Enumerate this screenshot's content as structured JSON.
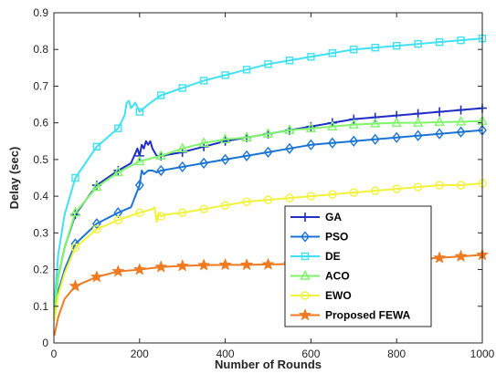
{
  "chart_data": {
    "type": "line",
    "title": "",
    "xlabel": "Number of Rounds",
    "ylabel": "Delay (sec)",
    "xlim": [
      0,
      1000
    ],
    "ylim": [
      0,
      0.9
    ],
    "xticks": [
      0,
      200,
      400,
      600,
      800,
      1000
    ],
    "yticks": [
      0,
      0.1,
      0.2,
      0.3,
      0.4,
      0.5,
      0.6,
      0.7,
      0.8,
      0.9
    ],
    "xtick_labels": [
      "0",
      "200",
      "400",
      "600",
      "800",
      "1000"
    ],
    "ytick_labels": [
      "0",
      "0.1",
      "0.2",
      "0.3",
      "0.4",
      "0.5",
      "0.6",
      "0.7",
      "0.8",
      "0.9"
    ],
    "grid": false,
    "legend_position": "lower-right",
    "series": [
      {
        "name": "GA",
        "color": "#1f2ec6",
        "marker": "plus",
        "x": [
          1,
          10,
          25,
          50,
          100,
          150,
          180,
          195,
          200,
          205,
          210,
          215,
          220,
          225,
          230,
          240,
          250,
          300,
          350,
          400,
          450,
          500,
          550,
          600,
          650,
          700,
          750,
          800,
          850,
          900,
          950,
          1000
        ],
        "y": [
          0.08,
          0.18,
          0.26,
          0.35,
          0.43,
          0.47,
          0.49,
          0.53,
          0.51,
          0.54,
          0.53,
          0.55,
          0.54,
          0.55,
          0.53,
          0.51,
          0.51,
          0.52,
          0.535,
          0.55,
          0.56,
          0.57,
          0.58,
          0.59,
          0.6,
          0.61,
          0.615,
          0.62,
          0.625,
          0.63,
          0.635,
          0.64
        ],
        "marker_x": [
          50,
          100,
          150,
          200,
          250,
          300,
          350,
          400,
          450,
          500,
          550,
          600,
          650,
          700,
          750,
          800,
          850,
          900,
          950,
          1000
        ]
      },
      {
        "name": "PSO",
        "color": "#1a74d6",
        "marker": "diamond",
        "x": [
          1,
          10,
          25,
          50,
          100,
          150,
          180,
          190,
          200,
          205,
          210,
          220,
          230,
          240,
          250,
          300,
          350,
          400,
          450,
          500,
          550,
          600,
          650,
          700,
          750,
          800,
          850,
          900,
          950,
          1000
        ],
        "y": [
          0.07,
          0.14,
          0.2,
          0.27,
          0.325,
          0.355,
          0.37,
          0.4,
          0.43,
          0.47,
          0.46,
          0.47,
          0.47,
          0.465,
          0.47,
          0.48,
          0.49,
          0.5,
          0.51,
          0.52,
          0.53,
          0.54,
          0.545,
          0.55,
          0.555,
          0.56,
          0.565,
          0.57,
          0.575,
          0.58
        ],
        "marker_x": [
          50,
          100,
          150,
          200,
          250,
          300,
          350,
          400,
          450,
          500,
          550,
          600,
          650,
          700,
          750,
          800,
          850,
          900,
          950,
          1000
        ]
      },
      {
        "name": "DE",
        "color": "#3fe1f2",
        "marker": "square",
        "x": [
          1,
          10,
          25,
          50,
          100,
          150,
          165,
          170,
          175,
          180,
          190,
          200,
          210,
          220,
          250,
          300,
          350,
          400,
          450,
          500,
          550,
          600,
          650,
          700,
          750,
          800,
          850,
          900,
          950,
          1000
        ],
        "y": [
          0.1,
          0.24,
          0.35,
          0.45,
          0.535,
          0.585,
          0.62,
          0.655,
          0.66,
          0.64,
          0.655,
          0.63,
          0.64,
          0.65,
          0.675,
          0.695,
          0.715,
          0.73,
          0.745,
          0.76,
          0.77,
          0.78,
          0.79,
          0.8,
          0.805,
          0.81,
          0.815,
          0.82,
          0.825,
          0.83
        ],
        "marker_x": [
          50,
          100,
          150,
          200,
          250,
          300,
          350,
          400,
          450,
          500,
          550,
          600,
          650,
          700,
          750,
          800,
          850,
          900,
          950,
          1000
        ]
      },
      {
        "name": "ACO",
        "color": "#7ff56a",
        "marker": "triangle",
        "x": [
          1,
          10,
          25,
          50,
          100,
          150,
          200,
          250,
          300,
          350,
          400,
          450,
          500,
          550,
          600,
          650,
          700,
          750,
          800,
          850,
          900,
          950,
          1000
        ],
        "y": [
          0.08,
          0.18,
          0.26,
          0.355,
          0.425,
          0.465,
          0.495,
          0.51,
          0.53,
          0.545,
          0.555,
          0.56,
          0.57,
          0.58,
          0.585,
          0.59,
          0.595,
          0.598,
          0.6,
          0.6,
          0.602,
          0.603,
          0.605
        ],
        "marker_x": [
          50,
          100,
          150,
          200,
          250,
          300,
          350,
          400,
          450,
          500,
          550,
          600,
          650,
          700,
          750,
          800,
          850,
          900,
          950,
          1000
        ]
      },
      {
        "name": "EWO",
        "color": "#f2f23a",
        "marker": "circle",
        "x": [
          1,
          10,
          25,
          50,
          100,
          150,
          200,
          230,
          235,
          240,
          245,
          250,
          260,
          300,
          350,
          400,
          450,
          500,
          550,
          600,
          650,
          700,
          750,
          800,
          850,
          900,
          950,
          1000
        ],
        "y": [
          0.06,
          0.13,
          0.19,
          0.26,
          0.31,
          0.335,
          0.355,
          0.365,
          0.37,
          0.33,
          0.355,
          0.345,
          0.35,
          0.355,
          0.365,
          0.375,
          0.385,
          0.39,
          0.395,
          0.4,
          0.405,
          0.41,
          0.415,
          0.42,
          0.425,
          0.43,
          0.43,
          0.435
        ],
        "marker_x": [
          50,
          100,
          150,
          200,
          250,
          300,
          350,
          400,
          450,
          500,
          550,
          600,
          650,
          700,
          750,
          800,
          850,
          900,
          950,
          1000
        ]
      },
      {
        "name": "Proposed FEWA",
        "color": "#f07a22",
        "marker": "star",
        "x": [
          1,
          10,
          25,
          50,
          100,
          150,
          200,
          250,
          300,
          350,
          400,
          450,
          500,
          550,
          600,
          650,
          700,
          750,
          800,
          850,
          900,
          950,
          1000
        ],
        "y": [
          0.02,
          0.07,
          0.12,
          0.155,
          0.18,
          0.195,
          0.2,
          0.207,
          0.21,
          0.212,
          0.213,
          0.213,
          0.214,
          0.215,
          0.216,
          0.218,
          0.22,
          0.222,
          0.225,
          0.228,
          0.232,
          0.236,
          0.24
        ],
        "marker_x": [
          50,
          100,
          150,
          200,
          250,
          300,
          350,
          400,
          450,
          500,
          550,
          600,
          650,
          700,
          750,
          800,
          850,
          900,
          950,
          1000
        ]
      }
    ]
  }
}
